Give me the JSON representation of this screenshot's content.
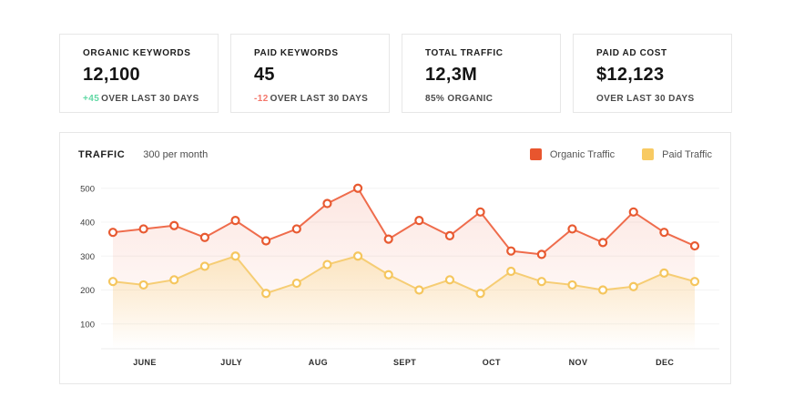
{
  "cards": [
    {
      "label": "ORGANIC KEYWORDS",
      "value": "12,100",
      "delta": "+45",
      "delta_color": "#5fd8a4",
      "note": "OVER LAST 30 DAYS"
    },
    {
      "label": "PAID KEYWORDS",
      "value": "45",
      "delta": "-12",
      "delta_color": "#f4776b",
      "note": "OVER LAST 30 DAYS"
    },
    {
      "label": "TOTAL TRAFFIC",
      "value": "12,3M",
      "delta": "",
      "delta_color": "",
      "note": "85% ORGANIC"
    },
    {
      "label": "PAID AD COST",
      "value": "$12,123",
      "delta": "",
      "delta_color": "",
      "note": "OVER LAST 30 DAYS"
    }
  ],
  "chart": {
    "title": "TRAFFIC",
    "subtitle": "300 per month",
    "legend": [
      {
        "label": "Organic Traffic",
        "color": "#e8552e"
      },
      {
        "label": "Paid Traffic",
        "color": "#f8ca62"
      }
    ]
  },
  "chart_data": {
    "type": "area",
    "title": "TRAFFIC",
    "subtitle": "300 per month",
    "x_labels": [
      "JUNE",
      "JULY",
      "AUG",
      "SEPT",
      "OCT",
      "NOV",
      "DEC"
    ],
    "y_ticks": [
      100,
      200,
      300,
      400,
      500
    ],
    "ylim": [
      0,
      550
    ],
    "grid": true,
    "legend_position": "top-right",
    "series": [
      {
        "name": "Organic Traffic",
        "line_color": "#ef6c4c",
        "marker_stroke": "#e85a31",
        "fill_rgb": "238,95,60",
        "fill_opacity": 0.15,
        "values": [
          370,
          380,
          390,
          355,
          405,
          345,
          380,
          455,
          500,
          350,
          405,
          360,
          430,
          315,
          305,
          380,
          340,
          430,
          370,
          330
        ]
      },
      {
        "name": "Paid Traffic",
        "line_color": "#f6cd74",
        "marker_stroke": "#f5c65e",
        "fill_rgb": "248,203,98",
        "fill_opacity": 0.32,
        "values": [
          225,
          215,
          230,
          270,
          300,
          190,
          220,
          275,
          300,
          245,
          200,
          230,
          190,
          255,
          225,
          215,
          200,
          210,
          250,
          225
        ]
      }
    ]
  }
}
